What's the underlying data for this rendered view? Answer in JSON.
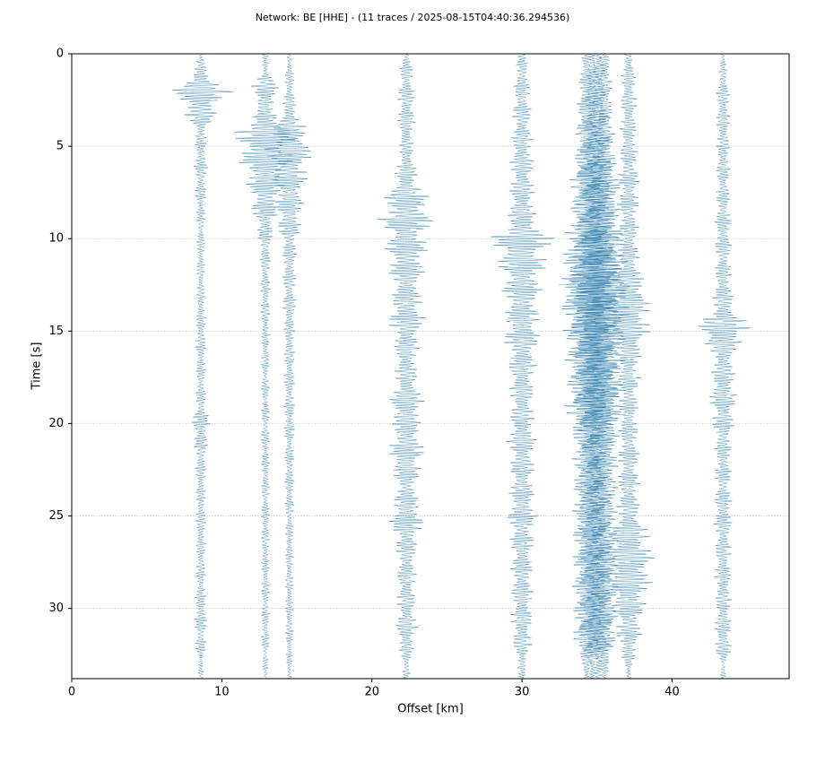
{
  "chart_data": {
    "type": "wiggle",
    "title": "Network: BE [HHE] - (11 traces / 2025-08-15T04:40:36.294536)",
    "xlabel": "Offset [km]",
    "ylabel": "Time [s]",
    "xlim": [
      0,
      47.8
    ],
    "xticks": [
      0,
      10,
      20,
      30,
      40
    ],
    "ylim": [
      0,
      33.8
    ],
    "y_inverted": true,
    "yticks": [
      0,
      5,
      10,
      15,
      20,
      25,
      30
    ],
    "grid": true,
    "color": "#2b7bab",
    "x": [
      0,
      1,
      2,
      3,
      4,
      5,
      6,
      7,
      8,
      9,
      10,
      11,
      12,
      13,
      14,
      15,
      16,
      17,
      18,
      19,
      20,
      21,
      22,
      23,
      24,
      25,
      26,
      27,
      28,
      29,
      30,
      31,
      32,
      33
    ],
    "traces": [
      {
        "offset": 8.6,
        "values": [
          0.2,
          0.5,
          2.2,
          1.4,
          0.5,
          0.4,
          0.5,
          0.4,
          0.4,
          0.3,
          0.3,
          0.3,
          0.3,
          0.3,
          0.35,
          0.4,
          0.4,
          0.35,
          0.35,
          0.4,
          0.7,
          0.5,
          0.4,
          0.4,
          0.35,
          0.4,
          0.35,
          0.35,
          0.35,
          0.35,
          0.45,
          0.45,
          0.4,
          0.2
        ]
      },
      {
        "offset": 12.9,
        "values": [
          0.2,
          0.3,
          1.2,
          0.5,
          2.0,
          2.5,
          1.8,
          1.4,
          1.2,
          0.8,
          0.5,
          0.4,
          0.35,
          0.35,
          0.35,
          0.3,
          0.3,
          0.3,
          0.3,
          0.3,
          0.3,
          0.3,
          0.3,
          0.3,
          0.3,
          0.3,
          0.3,
          0.3,
          0.3,
          0.3,
          0.3,
          0.3,
          0.3,
          0.2
        ]
      },
      {
        "offset": 14.5,
        "values": [
          0.2,
          0.3,
          0.4,
          0.5,
          1.2,
          1.8,
          1.6,
          1.2,
          1.0,
          1.0,
          0.6,
          0.5,
          0.5,
          0.5,
          0.45,
          0.4,
          0.4,
          0.4,
          0.4,
          0.4,
          0.4,
          0.35,
          0.35,
          0.35,
          0.35,
          0.3,
          0.3,
          0.3,
          0.3,
          0.3,
          0.3,
          0.3,
          0.3,
          0.2
        ]
      },
      {
        "offset": 22.3,
        "values": [
          0.3,
          0.5,
          0.6,
          0.7,
          0.6,
          0.5,
          0.7,
          1.0,
          1.8,
          2.0,
          1.5,
          1.6,
          1.2,
          1.0,
          1.5,
          1.1,
          0.9,
          0.8,
          0.9,
          1.4,
          1.0,
          1.2,
          1.4,
          0.8,
          0.8,
          1.4,
          1.0,
          0.7,
          0.7,
          0.7,
          0.7,
          0.8,
          0.6,
          0.3
        ]
      },
      {
        "offset": 30.0,
        "values": [
          0.3,
          0.5,
          0.6,
          0.7,
          0.7,
          0.8,
          0.9,
          0.9,
          1.0,
          1.0,
          2.4,
          2.0,
          1.5,
          1.4,
          1.2,
          1.5,
          1.1,
          1.0,
          0.9,
          0.9,
          0.9,
          1.1,
          0.9,
          0.9,
          0.9,
          1.1,
          0.9,
          0.8,
          0.8,
          0.8,
          0.8,
          0.8,
          0.7,
          0.3
        ]
      },
      {
        "offset": 34.3,
        "values": [
          0.3,
          0.5,
          0.6,
          0.7,
          0.8,
          0.8,
          1.0,
          1.2,
          1.2,
          1.3,
          1.6,
          1.8,
          2.0,
          2.0,
          1.8,
          1.7,
          1.6,
          1.5,
          1.5,
          1.6,
          1.3,
          1.0,
          1.0,
          1.0,
          1.0,
          1.0,
          1.0,
          1.0,
          1.0,
          1.0,
          1.0,
          1.0,
          0.9,
          0.3
        ]
      },
      {
        "offset": 34.7,
        "values": [
          0.3,
          0.4,
          0.6,
          0.6,
          0.7,
          0.8,
          1.1,
          1.3,
          1.2,
          1.2,
          1.5,
          1.7,
          1.9,
          2.1,
          1.7,
          1.6,
          1.5,
          1.6,
          1.4,
          1.5,
          1.2,
          1.0,
          0.9,
          1.0,
          0.9,
          1.0,
          1.0,
          0.9,
          1.0,
          1.0,
          0.9,
          1.0,
          0.8,
          0.3
        ]
      },
      {
        "offset": 35.1,
        "values": [
          0.3,
          0.5,
          0.5,
          0.7,
          0.8,
          0.9,
          1.0,
          1.1,
          1.3,
          1.2,
          1.7,
          1.9,
          1.9,
          2.0,
          1.9,
          1.6,
          1.6,
          1.5,
          1.6,
          1.5,
          1.3,
          1.1,
          1.0,
          0.9,
          1.0,
          1.0,
          0.9,
          1.0,
          1.0,
          0.9,
          1.0,
          1.0,
          0.9,
          0.3
        ]
      },
      {
        "offset": 35.5,
        "values": [
          0.3,
          0.5,
          0.6,
          0.6,
          0.7,
          0.8,
          0.9,
          1.2,
          1.1,
          1.3,
          1.5,
          1.6,
          1.8,
          1.9,
          1.8,
          1.7,
          1.5,
          1.4,
          1.5,
          1.4,
          1.2,
          1.0,
          1.0,
          1.0,
          1.0,
          0.9,
          1.0,
          1.0,
          0.9,
          1.0,
          1.0,
          0.9,
          0.8,
          0.3
        ]
      },
      {
        "offset": 37.1,
        "values": [
          0.3,
          0.5,
          0.6,
          0.6,
          0.6,
          0.6,
          0.7,
          0.8,
          0.8,
          0.7,
          0.7,
          0.8,
          1.0,
          1.5,
          1.8,
          1.6,
          1.0,
          0.8,
          0.8,
          0.7,
          0.7,
          0.7,
          0.8,
          0.8,
          0.8,
          0.9,
          1.6,
          1.9,
          1.9,
          1.6,
          1.2,
          1.0,
          0.8,
          0.3
        ]
      },
      {
        "offset": 43.4,
        "values": [
          0.2,
          0.3,
          0.5,
          0.5,
          0.5,
          0.5,
          0.5,
          0.5,
          0.5,
          0.6,
          0.6,
          0.6,
          0.6,
          0.7,
          1.0,
          2.4,
          0.9,
          0.8,
          1.0,
          1.0,
          0.8,
          0.6,
          0.6,
          0.6,
          0.6,
          0.7,
          0.6,
          0.6,
          0.6,
          0.6,
          0.6,
          0.6,
          0.7,
          0.2
        ]
      }
    ]
  }
}
